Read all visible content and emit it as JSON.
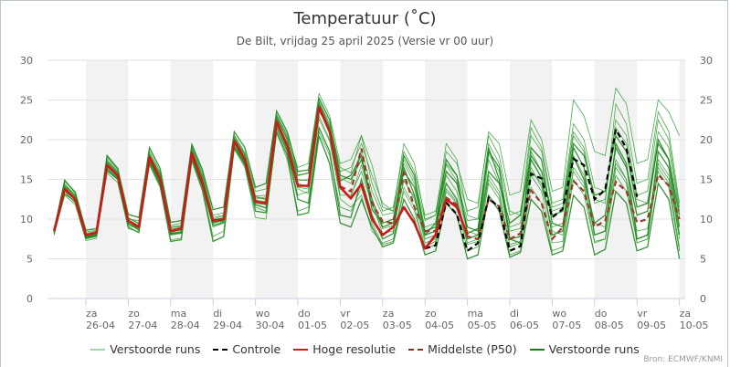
{
  "chart_data": {
    "type": "line",
    "title": "Temperatuur (˚C)",
    "subtitle": "De Bilt, vrijdag 25 april 2025 (Versie vr 00 uur)",
    "credit": "Bron: ECMWF/KNMI",
    "ylim": [
      0,
      30
    ],
    "yticks": [
      "0",
      "5",
      "10",
      "15",
      "20",
      "25",
      "30"
    ],
    "grid": true,
    "legend_placement": "bottom",
    "x_unit": "hours since 25-04 00:00",
    "xlim": [
      0,
      366
    ],
    "day_ticks": [
      {
        "day": "za",
        "date": "26-04"
      },
      {
        "day": "zo",
        "date": "27-04"
      },
      {
        "day": "ma",
        "date": "28-04"
      },
      {
        "day": "di",
        "date": "29-04"
      },
      {
        "day": "wo",
        "date": "30-04"
      },
      {
        "day": "do",
        "date": "01-05"
      },
      {
        "day": "vr",
        "date": "02-05"
      },
      {
        "day": "za",
        "date": "03-05"
      },
      {
        "day": "zo",
        "date": "04-05"
      },
      {
        "day": "ma",
        "date": "05-05"
      },
      {
        "day": "di",
        "date": "06-05"
      },
      {
        "day": "wo",
        "date": "07-05"
      },
      {
        "day": "do",
        "date": "08-05"
      },
      {
        "day": "vr",
        "date": "09-05"
      },
      {
        "day": "za",
        "date": "10-05"
      }
    ],
    "legend": [
      {
        "label": "Verstoorde runs",
        "color": "#a8d5a8",
        "style": "solid"
      },
      {
        "label": "Controle",
        "color": "#000000",
        "style": "dashed"
      },
      {
        "label": "Hoge resolutie",
        "color": "#cc1a1a",
        "style": "solid"
      },
      {
        "label": "Middelste (P50)",
        "color": "#8b2d22",
        "style": "dashed"
      },
      {
        "label": "Verstoorde runs",
        "color": "#1a7a1a",
        "style": "solid"
      }
    ],
    "colors": {
      "member": "#2e9b2e",
      "member_strong": "#168016",
      "hires": "#cc1a1a",
      "control": "#000000",
      "p50": "#9b3a2a",
      "band": "#f2f2f2",
      "grid": "#e2e2e2"
    },
    "series": [
      {
        "name": "Hoge resolutie",
        "x_start": 6,
        "x_step": 6,
        "values": [
          8.5,
          13.8,
          12.5,
          8.0,
          8.3,
          16.8,
          15.5,
          9.8,
          9.0,
          17.8,
          15.0,
          8.5,
          8.8,
          18.3,
          14.5,
          9.8,
          10.0,
          19.8,
          17.5,
          12.2,
          12.0,
          22.3,
          19.2,
          14.2,
          14.2,
          24.1,
          21.0,
          14.0,
          12.6,
          14.4,
          10.0,
          8.0,
          9.0,
          11.5,
          9.5,
          6.3,
          8.0,
          12.5,
          11.5,
          8.0
        ]
      },
      {
        "name": "Middelste (P50)",
        "x_start": 168,
        "x_step": 6,
        "values": [
          14.1,
          13.5,
          18.9,
          12.0,
          9.7,
          9.5,
          15.8,
          11.5,
          8.5,
          8.5,
          12.7,
          11.8,
          7.8,
          7.5,
          12.5,
          11.6,
          7.5,
          8.2,
          13.6,
          12.0,
          7.5,
          9.0,
          14.8,
          13.5,
          9.0,
          9.8,
          14.7,
          13.5,
          9.6,
          10.0,
          15.6,
          14.2,
          10.0
        ]
      },
      {
        "name": "Controle",
        "x_start": 216,
        "x_step": 6,
        "values": [
          6.3,
          6.7,
          12.1,
          10.6,
          6.0,
          7.0,
          12.7,
          11.4,
          6.0,
          6.6,
          15.7,
          15.1,
          10.2,
          11.3,
          17.6,
          16.8,
          12.5,
          13.7,
          21.3,
          18.9,
          12.8
        ]
      }
    ],
    "ensemble_members": [
      [
        8.3,
        14.2,
        12.8,
        7.8,
        8.0,
        17.2,
        15.8,
        9.5,
        8.6,
        18.0,
        15.4,
        8.2,
        8.4,
        18.6,
        15.0,
        9.6,
        9.8,
        20.2,
        18.0,
        12.8,
        12.5,
        22.8,
        20.0,
        15.5,
        15.8,
        24.6,
        21.6,
        14.8,
        15.5,
        18.0,
        11.2,
        9.5,
        10.0,
        16.5,
        13.0,
        8.0,
        9.5,
        16.0,
        14.5,
        9.0,
        8.5,
        19.0,
        15.0,
        7.5,
        7.8,
        17.5,
        15.2,
        8.0,
        8.5,
        17.8,
        15.0,
        9.5,
        10.5,
        19.0,
        16.5,
        10.5,
        11.0,
        20.0,
        17.5,
        9.0
      ],
      [
        8.0,
        13.5,
        12.0,
        7.5,
        7.8,
        16.0,
        15.0,
        9.2,
        8.8,
        17.2,
        14.5,
        8.0,
        8.2,
        17.8,
        14.0,
        9.0,
        9.5,
        19.5,
        17.0,
        11.5,
        11.0,
        21.8,
        18.8,
        13.0,
        13.5,
        23.0,
        20.0,
        12.5,
        11.5,
        13.0,
        8.5,
        7.0,
        7.5,
        14.0,
        11.5,
        6.5,
        7.2,
        13.5,
        12.0,
        6.0,
        6.5,
        14.5,
        12.5,
        5.5,
        6.0,
        14.0,
        12.0,
        6.0,
        6.5,
        15.0,
        13.0,
        7.0,
        7.5,
        15.5,
        13.5,
        7.5,
        8.0,
        16.0,
        14.0,
        6.0
      ],
      [
        8.6,
        15.0,
        13.2,
        8.2,
        8.5,
        17.8,
        16.2,
        10.2,
        9.5,
        18.6,
        16.0,
        9.0,
        9.2,
        19.2,
        15.8,
        10.5,
        10.8,
        20.6,
        18.4,
        13.5,
        13.8,
        23.2,
        20.6,
        16.5,
        17.0,
        25.8,
        23.0,
        17.0,
        17.5,
        20.5,
        14.5,
        11.0,
        11.5,
        18.5,
        16.0,
        10.5,
        11.0,
        17.0,
        15.5,
        11.0,
        11.5,
        21.0,
        19.5,
        13.0,
        13.5,
        22.5,
        20.0,
        13.5,
        14.0,
        25.0,
        23.0,
        18.5,
        18.0,
        26.5,
        24.5,
        17.0,
        17.5,
        25.0,
        23.5,
        20.5
      ],
      [
        8.2,
        13.2,
        12.2,
        7.6,
        7.9,
        16.4,
        15.2,
        9.0,
        8.3,
        17.0,
        14.2,
        7.2,
        7.4,
        17.4,
        13.6,
        7.2,
        7.8,
        19.0,
        16.8,
        11.0,
        10.8,
        21.0,
        18.0,
        10.5,
        10.8,
        20.5,
        17.0,
        9.5,
        9.0,
        12.5,
        9.0,
        6.5,
        7.0,
        12.5,
        10.0,
        5.5,
        6.0,
        12.0,
        10.5,
        5.0,
        5.5,
        13.0,
        11.0,
        5.2,
        5.8,
        12.5,
        11.0,
        5.5,
        6.0,
        13.0,
        11.5,
        5.5,
        6.2,
        13.5,
        12.0,
        6.0,
        6.5,
        14.5,
        12.5,
        5.0
      ],
      [
        8.4,
        14.5,
        13.0,
        8.4,
        8.6,
        17.5,
        16.0,
        10.0,
        9.8,
        18.2,
        15.8,
        9.2,
        9.5,
        19.0,
        15.5,
        10.2,
        10.5,
        20.0,
        18.0,
        12.5,
        12.8,
        22.5,
        20.2,
        14.5,
        14.0,
        23.5,
        21.5,
        16.0,
        16.5,
        19.5,
        15.5,
        12.0,
        11.0,
        17.0,
        14.5,
        9.0,
        9.5,
        18.5,
        17.0,
        12.5,
        12.0,
        20.5,
        18.0,
        11.0,
        10.5,
        21.5,
        19.0,
        12.0,
        12.5,
        22.0,
        20.0,
        14.0,
        13.5,
        21.5,
        19.5,
        12.5,
        12.0,
        21.0,
        19.0,
        11.0
      ],
      [
        8.1,
        13.9,
        12.6,
        7.9,
        8.2,
        16.6,
        15.4,
        9.6,
        9.1,
        17.6,
        14.9,
        8.4,
        8.6,
        18.0,
        14.4,
        9.4,
        9.9,
        19.6,
        17.2,
        12.0,
        11.8,
        22.0,
        19.0,
        13.8,
        13.2,
        22.6,
        19.8,
        13.0,
        13.0,
        16.0,
        11.8,
        8.8,
        9.2,
        15.0,
        12.5,
        7.5,
        8.0,
        15.5,
        13.5,
        8.5,
        8.0,
        17.5,
        14.5,
        8.5,
        8.8,
        16.5,
        14.0,
        9.0,
        9.5,
        18.0,
        15.5,
        9.5,
        9.0,
        17.0,
        15.0,
        8.5,
        8.8,
        17.5,
        15.5,
        7.5
      ],
      [
        8.7,
        14.8,
        13.4,
        8.6,
        8.8,
        18.0,
        16.4,
        10.6,
        10.2,
        19.0,
        16.4,
        9.6,
        9.8,
        19.4,
        16.2,
        11.2,
        11.5,
        21.0,
        19.0,
        14.0,
        14.5,
        23.6,
        21.0,
        16.0,
        16.2,
        25.2,
        22.5,
        15.5,
        15.0,
        17.5,
        12.5,
        9.0,
        9.5,
        16.0,
        14.0,
        8.5,
        9.0,
        14.5,
        12.5,
        7.5,
        8.0,
        16.0,
        14.5,
        9.5,
        10.5,
        18.0,
        16.0,
        10.5,
        11.0,
        19.5,
        18.0,
        13.0,
        13.5,
        20.5,
        18.5,
        11.5,
        12.0,
        19.5,
        17.5,
        10.5
      ],
      [
        8.0,
        13.0,
        11.8,
        7.3,
        7.6,
        15.8,
        14.6,
        8.8,
        8.4,
        16.8,
        14.0,
        7.4,
        7.6,
        17.6,
        14.0,
        7.8,
        8.5,
        18.8,
        16.5,
        10.2,
        10.0,
        20.8,
        17.5,
        11.0,
        11.5,
        21.0,
        18.0,
        11.5,
        11.0,
        14.0,
        9.5,
        6.8,
        7.2,
        13.5,
        11.0,
        6.2,
        6.8,
        14.5,
        12.5,
        7.0,
        7.5,
        15.5,
        13.5,
        6.5,
        7.0,
        16.0,
        14.5,
        8.5,
        8.0,
        16.5,
        14.5,
        8.0,
        8.5,
        17.5,
        15.0,
        7.0,
        7.5,
        16.5,
        14.5,
        6.5
      ],
      [
        8.5,
        14.0,
        12.9,
        8.1,
        8.3,
        17.0,
        15.6,
        9.9,
        9.2,
        17.9,
        15.2,
        8.7,
        9.0,
        18.4,
        14.8,
        9.9,
        10.2,
        19.9,
        17.6,
        12.4,
        12.2,
        22.4,
        19.6,
        14.8,
        15.0,
        24.0,
        21.2,
        15.2,
        14.5,
        18.8,
        13.5,
        10.5,
        10.8,
        17.5,
        15.0,
        9.8,
        10.5,
        16.8,
        14.8,
        9.8,
        10.0,
        18.2,
        16.0,
        9.0,
        9.5,
        20.5,
        18.5,
        11.5,
        12.0,
        21.0,
        19.0,
        12.5,
        12.0,
        24.5,
        22.0,
        14.5,
        15.0,
        23.5,
        21.0,
        12.0
      ],
      [
        8.3,
        13.6,
        12.4,
        7.7,
        8.0,
        16.2,
        15.0,
        9.4,
        8.9,
        17.4,
        14.6,
        8.1,
        8.3,
        17.9,
        14.2,
        9.2,
        9.6,
        19.2,
        17.0,
        11.8,
        11.4,
        21.5,
        18.5,
        12.5,
        12.0,
        21.5,
        18.5,
        10.5,
        10.2,
        15.0,
        10.5,
        7.5,
        8.2,
        18.0,
        15.5,
        8.0,
        8.5,
        17.5,
        15.5,
        8.2,
        8.8,
        18.5,
        16.5,
        7.5,
        7.0,
        19.0,
        17.5,
        9.5,
        9.0,
        19.0,
        16.5,
        8.0,
        8.5,
        19.5,
        17.0,
        7.5,
        8.0,
        18.5,
        16.5,
        8.0
      ],
      [
        8.4,
        14.3,
        13.0,
        8.0,
        8.4,
        17.3,
        15.9,
        10.1,
        9.4,
        18.3,
        15.6,
        8.9,
        9.1,
        18.8,
        15.3,
        10.0,
        10.4,
        20.4,
        18.2,
        12.9,
        13.0,
        23.0,
        20.4,
        15.0,
        14.8,
        24.8,
        22.0,
        16.5,
        15.8,
        20.5,
        16.8,
        11.5,
        11.0,
        19.5,
        17.0,
        10.0,
        10.5,
        19.5,
        17.5,
        10.5,
        10.0,
        19.5,
        17.0,
        10.5,
        11.0,
        18.5,
        16.0,
        11.0,
        11.5,
        20.5,
        18.5,
        12.0,
        12.5,
        22.5,
        20.5,
        13.0,
        13.5,
        22.5,
        20.0,
        11.5
      ],
      [
        8.2,
        13.7,
        12.5,
        7.9,
        8.1,
        16.7,
        15.3,
        9.7,
        9.0,
        17.7,
        15.0,
        8.3,
        8.7,
        18.1,
        14.6,
        9.6,
        9.7,
        19.7,
        17.4,
        12.1,
        11.9,
        22.2,
        19.4,
        14.0,
        13.8,
        23.8,
        20.8,
        13.8,
        12.8,
        16.8,
        12.0,
        8.2,
        8.5,
        14.8,
        12.8,
        7.0,
        7.5,
        13.8,
        12.2,
        6.8,
        7.2,
        15.0,
        13.0,
        6.8,
        7.2,
        15.5,
        13.5,
        7.0,
        7.2,
        16.0,
        14.0,
        7.2,
        7.5,
        16.5,
        14.5,
        7.0,
        7.5,
        17.0,
        15.0,
        6.0
      ]
    ]
  }
}
